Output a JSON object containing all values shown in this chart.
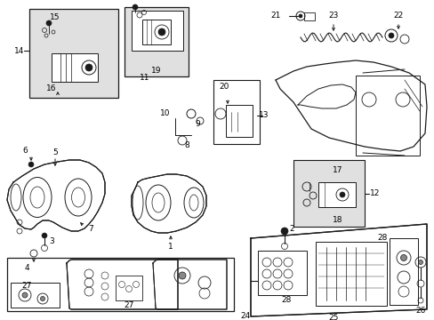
{
  "bg_color": "#ffffff",
  "lc": "#1a1a1a",
  "box_fill_light": "#e0e0e0",
  "box_fill_white": "#ffffff",
  "figsize": [
    4.89,
    3.6
  ],
  "dpi": 100
}
